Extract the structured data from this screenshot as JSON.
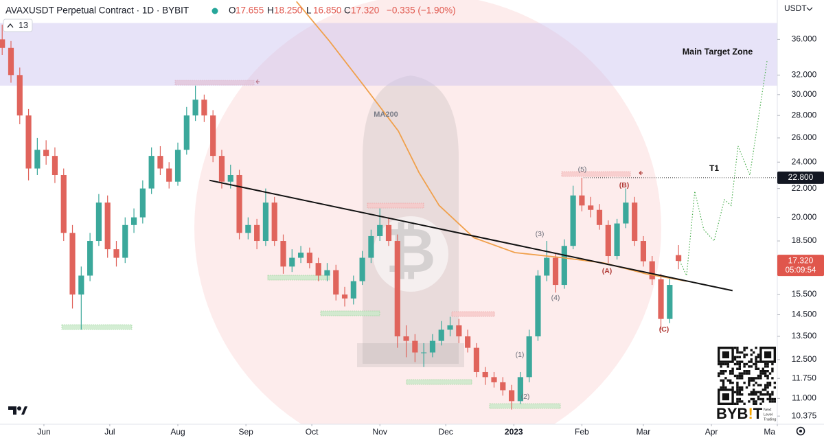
{
  "chart_data": {
    "type": "candlestick",
    "title": "AVAXUSDT Perpetual Contract · 1D · BYBIT",
    "header": {
      "ohlc": [
        [
          "O",
          "17.655"
        ],
        [
          "H",
          "18.250"
        ],
        [
          "L",
          "16.850"
        ],
        [
          "C",
          "17.320"
        ]
      ],
      "change": "−0.335 (−1.90%)"
    },
    "indicator_count": 13,
    "currency": "USDT",
    "up_color": "#3ba89b",
    "down_color": "#e0645c",
    "x": [
      1,
      5,
      9,
      13,
      17,
      21,
      25,
      29,
      33,
      37,
      41,
      45,
      49,
      53,
      57,
      61,
      65,
      69,
      73,
      77,
      81,
      85,
      89,
      93,
      97,
      101,
      105,
      109,
      113,
      117,
      121,
      125,
      129,
      133,
      137,
      141,
      145,
      149,
      153,
      157,
      161,
      165,
      169,
      173,
      177,
      181,
      185,
      189,
      193,
      197,
      201,
      205,
      209,
      213,
      217,
      221,
      225,
      229,
      233,
      237,
      241,
      245,
      249,
      253,
      257,
      261,
      265,
      269,
      273,
      277,
      281,
      285,
      289,
      293,
      297,
      301,
      305,
      309
    ],
    "open": [
      36,
      35,
      32,
      28,
      23.5,
      25,
      24.5,
      23,
      19,
      15.5,
      16.5,
      18.5,
      21,
      18,
      17.5,
      19.5,
      20,
      22,
      24.5,
      23.5,
      22.5,
      25,
      28,
      29.5,
      28,
      24.5,
      22.5,
      23,
      19,
      19.5,
      18.5,
      21,
      18.5,
      17,
      17.5,
      17.8,
      17.2,
      16.5,
      16.8,
      15.5,
      15.3,
      16.2,
      17.5,
      18.8,
      19.5,
      18.5,
      13.5,
      13.3,
      12.8,
      12.8,
      13.3,
      13.8,
      14,
      13.5,
      13,
      12,
      11.8,
      11.6,
      11.3,
      10.9,
      11.8,
      13.5,
      16.5,
      17.5,
      16,
      18.2,
      21.5,
      20.8,
      20.5,
      19.5,
      17.6,
      19.6,
      21,
      18.5,
      17.3,
      16.3,
      14.3,
      17.655
    ],
    "high": [
      37.8,
      35.8,
      32.8,
      28.6,
      26,
      25.8,
      25.2,
      23.5,
      19.5,
      17,
      19,
      21.6,
      21.5,
      18.5,
      20,
      20.6,
      22.6,
      25.2,
      25.3,
      24,
      25.6,
      28.8,
      30.9,
      30,
      28.5,
      25,
      23.8,
      23.4,
      20,
      19.9,
      22,
      21.4,
      18.9,
      18,
      18.2,
      18.1,
      17.5,
      17.2,
      17.1,
      15.9,
      16.5,
      17.9,
      19.2,
      20.6,
      20,
      18.9,
      14,
      13.6,
      13.2,
      13.6,
      14.2,
      14.4,
      14.3,
      13.8,
      13.2,
      12.2,
      12,
      11.8,
      11.5,
      12,
      13.8,
      16.8,
      18.5,
      17.8,
      18.6,
      22.2,
      22.8,
      21.4,
      20.9,
      19.8,
      19.9,
      22,
      21.4,
      18.8,
      17.6,
      16.6,
      16.4,
      18.25
    ],
    "low": [
      34.2,
      31.2,
      27.2,
      22.6,
      23,
      23.8,
      22.4,
      18.5,
      14.8,
      13.8,
      16.2,
      18.2,
      17.5,
      17,
      17.2,
      19,
      19.6,
      21.6,
      23,
      22,
      22.2,
      24.6,
      27.5,
      27.4,
      24,
      22,
      22,
      18.6,
      18.6,
      18,
      18.2,
      18.2,
      16.6,
      16.7,
      17.2,
      16.9,
      16.2,
      16.2,
      15.2,
      14.9,
      15,
      16,
      17.2,
      18.5,
      18.2,
      13,
      12.6,
      12.4,
      12.2,
      12.6,
      13.1,
      13.5,
      13.2,
      12.8,
      11.8,
      11.5,
      11.4,
      11.1,
      10.6,
      10.8,
      11.6,
      13.3,
      16.2,
      15.6,
      15.8,
      18,
      20.4,
      20,
      19.2,
      17.2,
      17.4,
      19.3,
      18.2,
      17,
      16,
      13.8,
      14.1,
      16.85
    ],
    "close": [
      35,
      32,
      28,
      23.5,
      25,
      24.5,
      23,
      19,
      15.5,
      16.5,
      18.5,
      21,
      18,
      17.5,
      19.5,
      20,
      22,
      24.5,
      23.5,
      22.5,
      25,
      28,
      29.5,
      28,
      24.5,
      22.5,
      23,
      19,
      19.5,
      18.5,
      21,
      18.5,
      17,
      17.5,
      17.8,
      17.2,
      16.5,
      16.8,
      15.5,
      15.3,
      16.2,
      17.5,
      18.8,
      19.5,
      18.5,
      13.5,
      13.3,
      12.8,
      12.8,
      13.3,
      13.8,
      14,
      13.5,
      13,
      12,
      11.8,
      11.6,
      11.3,
      10.9,
      11.8,
      13.5,
      16.5,
      17.5,
      16,
      18.2,
      21.5,
      20.8,
      20.5,
      19.5,
      17.6,
      19.6,
      21,
      18.5,
      17.3,
      16.3,
      14.3,
      16,
      17.32
    ],
    "ma": {
      "name": "MA200",
      "color": "#f0a04b",
      "x": [
        135,
        150,
        165.7,
        181.4,
        190.8,
        200,
        215.8,
        234.5,
        256.4,
        275.2,
        294,
        312.7
      ],
      "values": [
        40.8,
        35.8,
        30.9,
        26.6,
        23.2,
        20.8,
        18.7,
        17.8,
        17.5,
        17.2,
        16.6,
        16.2
      ]
    },
    "trendline": {
      "color": "#111111",
      "x": [
        95.4,
        333.6
      ],
      "values": [
        22.6,
        15.7
      ]
    },
    "projection": {
      "color": "#4caf50",
      "x": [
        309.6,
        312.7,
        316.4,
        320.5,
        325.2,
        329.9,
        333,
        336.1,
        341.5,
        349.3
      ],
      "values": [
        17.3,
        16.5,
        21.8,
        19.2,
        18.5,
        21.2,
        20.8,
        25.3,
        23,
        33.5
      ]
    },
    "target_zone": {
      "label": "Main Target Zone",
      "range": [
        30.9,
        38
      ],
      "color": "#c9c2f0"
    },
    "t1": {
      "label": "T1",
      "value": 22.8,
      "value_label": "22.800"
    },
    "last_price": {
      "value": 17.32,
      "label": "17.320",
      "countdown": "05:09:54"
    },
    "wave_labels": [
      "(1)",
      "(2)",
      "(3)",
      "(4)",
      "(5)",
      "(A)",
      "(B)",
      "(C)"
    ],
    "log_scale": true,
    "xlim": [
      0,
      354
    ],
    "xticks": [
      {
        "value": 20,
        "label": "Jun"
      },
      {
        "value": 50,
        "label": "Jul"
      },
      {
        "value": 81,
        "label": "Aug"
      },
      {
        "value": 112,
        "label": "Sep"
      },
      {
        "value": 142,
        "label": "Oct"
      },
      {
        "value": 173,
        "label": "Nov"
      },
      {
        "value": 203,
        "label": "Dec"
      },
      {
        "value": 234,
        "label": "2023"
      },
      {
        "value": 265,
        "label": "Feb"
      },
      {
        "value": 293,
        "label": "Mar"
      },
      {
        "value": 324,
        "label": "Apr"
      },
      {
        "value": 354,
        "label": "Ma"
      }
    ],
    "ylim": [
      10.1,
      41
    ],
    "yticks": [
      {
        "value": 36,
        "label": "36.000"
      },
      {
        "value": 32,
        "label": "32.000"
      },
      {
        "value": 30,
        "label": "30.000"
      },
      {
        "value": 28,
        "label": "28.000"
      },
      {
        "value": 26,
        "label": "26.000"
      },
      {
        "value": 24,
        "label": "24.000"
      },
      {
        "value": 22,
        "label": "22.000"
      },
      {
        "value": 20,
        "label": "20.000"
      },
      {
        "value": 18.5,
        "label": "18.500"
      },
      {
        "value": 15.5,
        "label": "15.500"
      },
      {
        "value": 14.5,
        "label": "14.500"
      },
      {
        "value": 13.5,
        "label": "13.500"
      },
      {
        "value": 12.5,
        "label": "12.500"
      },
      {
        "value": 11.75,
        "label": "11.750"
      },
      {
        "value": 11,
        "label": "11.000"
      },
      {
        "value": 10.375,
        "label": "10.375"
      }
    ]
  }
}
